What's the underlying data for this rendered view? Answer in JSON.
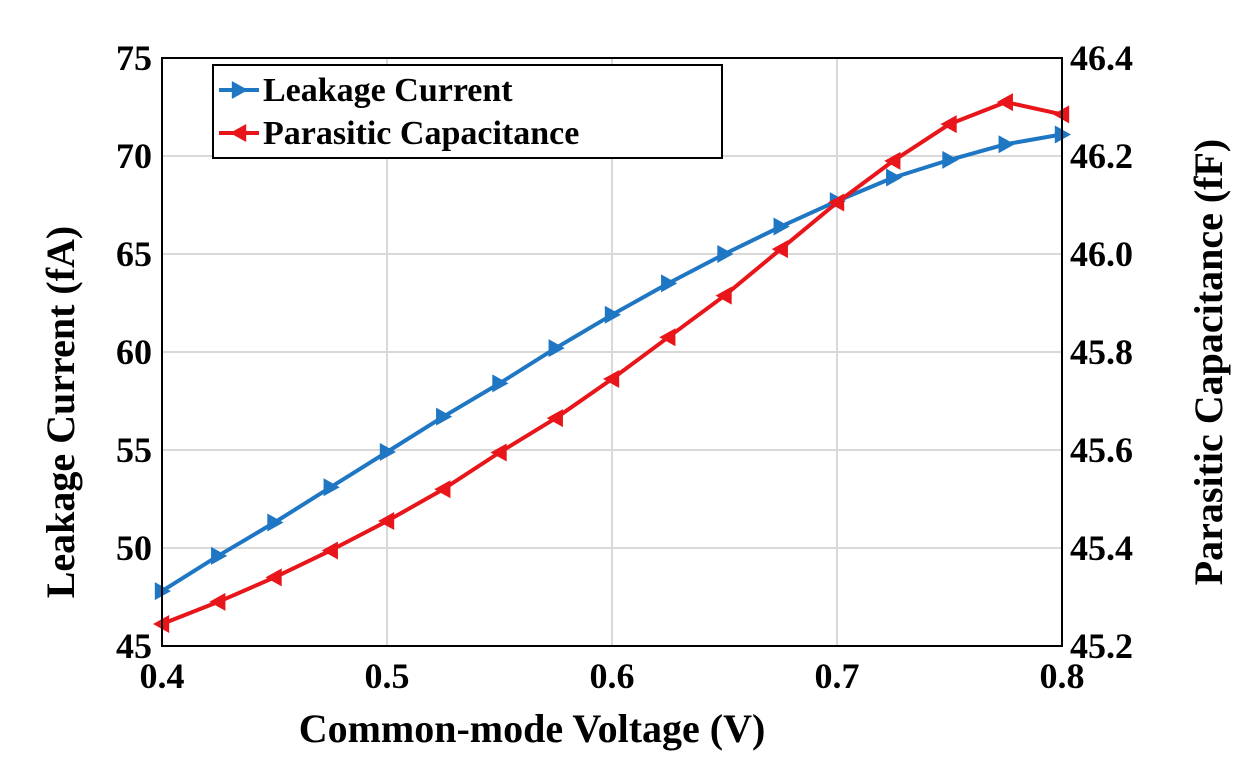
{
  "chart_data": {
    "type": "line",
    "xlabel": "Common-mode Voltage (V)",
    "ylabel": "Leakage Current (fA)",
    "y2label": "Parasitic Capacitance (fF)",
    "xlim": [
      0.4,
      0.8
    ],
    "ylim": [
      45,
      75
    ],
    "y2lim": [
      45.2,
      46.4
    ],
    "xticks": [
      "0.4",
      "0.5",
      "0.6",
      "0.7",
      "0.8"
    ],
    "yticks": [
      "45",
      "50",
      "55",
      "60",
      "65",
      "70",
      "75"
    ],
    "y2ticks": [
      "45.2",
      "45.4",
      "45.6",
      "45.8",
      "46.0",
      "46.2",
      "46.4"
    ],
    "grid": true,
    "legend_position": "top-left",
    "series": [
      {
        "name": "Leakage Current",
        "axis": "left",
        "color": "#1f77c4",
        "marker": "triangle-right",
        "x": [
          0.4,
          0.425,
          0.45,
          0.475,
          0.5,
          0.525,
          0.55,
          0.575,
          0.6,
          0.625,
          0.65,
          0.675,
          0.7,
          0.725,
          0.75,
          0.775,
          0.8
        ],
        "values": [
          47.8,
          49.6,
          51.3,
          53.1,
          54.9,
          56.7,
          58.4,
          60.2,
          61.9,
          63.5,
          65.0,
          66.4,
          67.7,
          68.9,
          69.8,
          70.6,
          71.1
        ]
      },
      {
        "name": "Parasitic Capacitance",
        "axis": "right",
        "color": "#e8161b",
        "marker": "triangle-left",
        "x": [
          0.4,
          0.425,
          0.45,
          0.475,
          0.5,
          0.525,
          0.55,
          0.575,
          0.6,
          0.625,
          0.65,
          0.675,
          0.7,
          0.725,
          0.75,
          0.775,
          0.8
        ],
        "values": [
          45.245,
          45.29,
          45.34,
          45.395,
          45.455,
          45.52,
          45.595,
          45.665,
          45.745,
          45.83,
          45.915,
          46.01,
          46.105,
          46.19,
          46.265,
          46.31,
          46.285
        ]
      }
    ]
  }
}
